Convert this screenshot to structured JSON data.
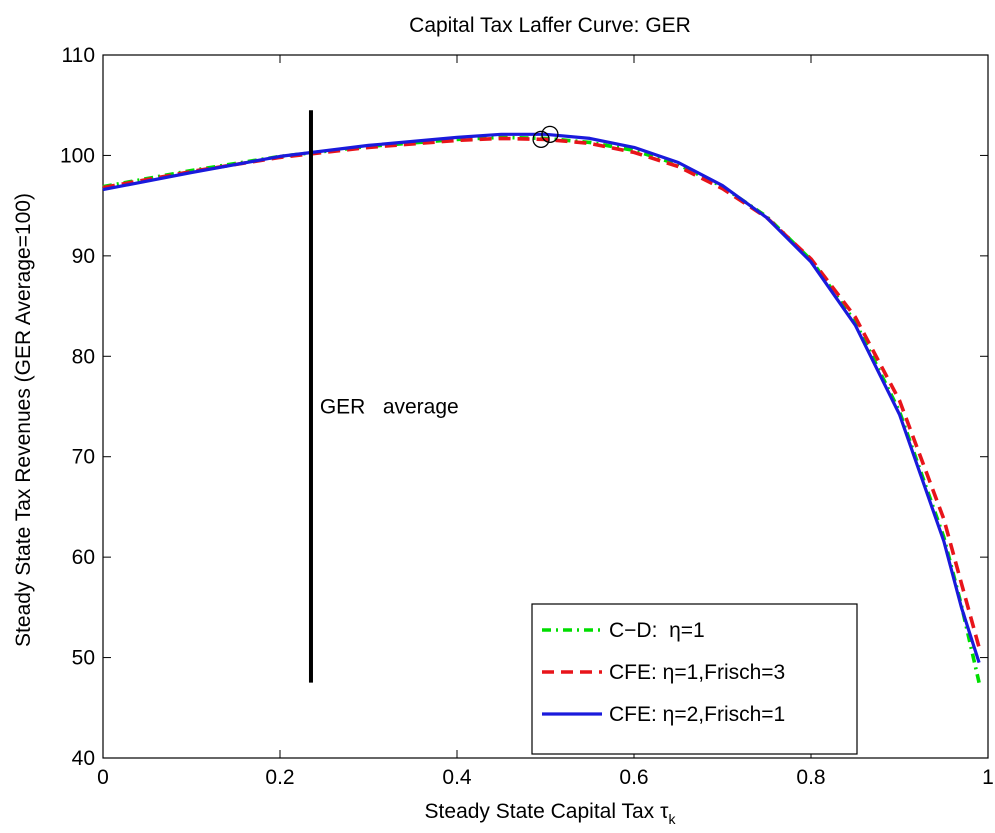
{
  "chart_data": {
    "type": "line",
    "title": "Capital Tax Laffer Curve: GER",
    "xlabel": "Steady State Capital Tax",
    "xlabel_symbol": "τ",
    "xlabel_subscript": "k",
    "ylabel": "Steady State Tax Revenues (GER   Average=100)",
    "xlim": [
      0,
      1
    ],
    "ylim": [
      40,
      110
    ],
    "xticks": [
      0,
      0.2,
      0.4,
      0.6,
      0.8,
      1
    ],
    "xtick_labels": [
      "0",
      "0.2",
      "0.4",
      "0.6",
      "0.8",
      "1"
    ],
    "yticks": [
      40,
      50,
      60,
      70,
      80,
      90,
      100,
      110
    ],
    "ytick_labels": [
      "40",
      "50",
      "60",
      "70",
      "80",
      "90",
      "100",
      "110"
    ],
    "grid": false,
    "legend_position": "bottom-right",
    "series": [
      {
        "name": "C−D:  η=1",
        "color": "#00dd00",
        "style": "dash-dot",
        "x": [
          0,
          0.1,
          0.2,
          0.3,
          0.4,
          0.45,
          0.5,
          0.55,
          0.6,
          0.65,
          0.7,
          0.75,
          0.8,
          0.85,
          0.9,
          0.95,
          0.97,
          0.99
        ],
        "y": [
          96.9,
          98.5,
          99.9,
          100.9,
          101.6,
          101.8,
          101.7,
          101.3,
          100.5,
          99.1,
          96.9,
          93.9,
          89.6,
          83.4,
          74.5,
          62.0,
          55.2,
          47.5
        ]
      },
      {
        "name": "CFE: η=1,Frisch=3",
        "color": "#e8141a",
        "style": "dashed",
        "x": [
          0,
          0.1,
          0.2,
          0.3,
          0.4,
          0.45,
          0.5,
          0.55,
          0.6,
          0.65,
          0.7,
          0.75,
          0.8,
          0.85,
          0.9,
          0.95,
          0.97,
          0.99
        ],
        "y": [
          96.8,
          98.4,
          99.8,
          100.8,
          101.5,
          101.7,
          101.6,
          101.2,
          100.3,
          98.9,
          96.7,
          93.8,
          89.7,
          83.9,
          75.6,
          63.8,
          57.4,
          51.0
        ]
      },
      {
        "name": "CFE: η=2,Frisch=1",
        "color": "#1a1adc",
        "style": "solid",
        "x": [
          0,
          0.1,
          0.2,
          0.3,
          0.4,
          0.45,
          0.5,
          0.55,
          0.6,
          0.65,
          0.7,
          0.75,
          0.8,
          0.85,
          0.9,
          0.95,
          0.97,
          0.99
        ],
        "y": [
          96.6,
          98.3,
          99.9,
          101.0,
          101.8,
          102.1,
          102.1,
          101.7,
          100.8,
          99.3,
          97.0,
          93.8,
          89.4,
          83.1,
          74.2,
          61.6,
          55.0,
          49.5
        ]
      }
    ],
    "maximum_markers": [
      {
        "x": 0.495,
        "y": 101.6
      },
      {
        "x": 0.505,
        "y": 102.1
      }
    ],
    "annotations": [
      {
        "type": "vline",
        "x": 0.235,
        "y_from": 47.5,
        "y_to": 104.5,
        "color": "#000000",
        "label": "GER   average",
        "label_x": 0.245,
        "label_y": 75
      }
    ]
  }
}
